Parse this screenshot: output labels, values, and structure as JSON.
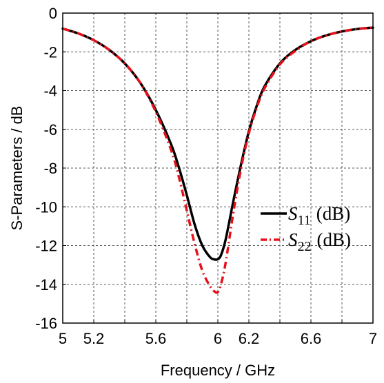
{
  "chart_data": {
    "type": "line",
    "xlabel": "Frequency / GHz",
    "ylabel": "S-Parameters / dB",
    "xlim": [
      5,
      7
    ],
    "ylim": [
      -16,
      0
    ],
    "x_ticks": [
      5,
      5.2,
      5.6,
      6,
      6.2,
      6.6,
      7
    ],
    "x_tick_labels": [
      "5",
      "5.2",
      "5.6",
      "6",
      "6.2",
      "6.6",
      "7"
    ],
    "y_ticks": [
      0,
      -2,
      -4,
      -6,
      -8,
      -10,
      -12,
      -14,
      -16
    ],
    "y_tick_labels": [
      "0",
      "-2",
      "-4",
      "-6",
      "-8",
      "-10",
      "-12",
      "-14",
      "-16"
    ],
    "grid": true,
    "grid_x": [
      5,
      5.2,
      5.4,
      5.6,
      5.8,
      6,
      6.2,
      6.4,
      6.6,
      6.8,
      7
    ],
    "grid_y": [
      0,
      -2,
      -4,
      -6,
      -8,
      -10,
      -12,
      -14,
      -16
    ],
    "legend_position": "center-right",
    "series": [
      {
        "name": "S11 (dB)",
        "legend_base": "S",
        "legend_sub": "11",
        "legend_unit": "(dB)",
        "color": "#000000",
        "style": "solid",
        "x": [
          5.0,
          5.1,
          5.2,
          5.3,
          5.4,
          5.5,
          5.6,
          5.7,
          5.75,
          5.8,
          5.85,
          5.9,
          5.95,
          5.98,
          6.0,
          6.02,
          6.05,
          6.1,
          6.15,
          6.2,
          6.25,
          6.3,
          6.4,
          6.5,
          6.6,
          6.7,
          6.8,
          6.9,
          7.0
        ],
        "y": [
          -0.8,
          -1.05,
          -1.4,
          -1.9,
          -2.6,
          -3.6,
          -5.0,
          -6.8,
          -8.0,
          -9.4,
          -10.9,
          -12.0,
          -12.6,
          -12.72,
          -12.7,
          -12.5,
          -11.7,
          -9.7,
          -7.8,
          -6.1,
          -4.8,
          -3.8,
          -2.6,
          -1.9,
          -1.45,
          -1.15,
          -0.95,
          -0.82,
          -0.75
        ]
      },
      {
        "name": "S22 (dB)",
        "legend_base": "S",
        "legend_sub": "22",
        "legend_unit": "(dB)",
        "color": "#e8101a",
        "style": "dash-dot",
        "x": [
          5.0,
          5.1,
          5.2,
          5.3,
          5.4,
          5.5,
          5.6,
          5.7,
          5.75,
          5.8,
          5.85,
          5.9,
          5.95,
          5.98,
          6.0,
          6.02,
          6.05,
          6.1,
          6.15,
          6.2,
          6.25,
          6.3,
          6.4,
          6.5,
          6.6,
          6.7,
          6.8,
          6.9,
          7.0
        ],
        "y": [
          -0.8,
          -1.05,
          -1.4,
          -1.9,
          -2.6,
          -3.6,
          -5.1,
          -7.1,
          -8.5,
          -10.2,
          -11.9,
          -13.3,
          -14.1,
          -14.38,
          -14.4,
          -14.0,
          -12.9,
          -10.3,
          -8.0,
          -6.2,
          -4.9,
          -3.9,
          -2.65,
          -1.95,
          -1.45,
          -1.15,
          -0.95,
          -0.82,
          -0.75
        ]
      }
    ]
  }
}
